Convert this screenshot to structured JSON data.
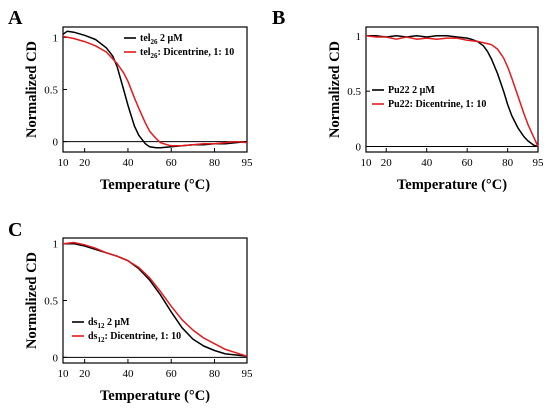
{
  "chart_data": [
    {
      "panel": "A",
      "type": "line",
      "xlabel": "Temperature (°C)",
      "ylabel": "Normalized CD",
      "xlim": [
        10,
        95
      ],
      "ylim": [
        -0.1,
        1.1
      ],
      "xticks": [
        10,
        20,
        40,
        60,
        80,
        95
      ],
      "yticks": [
        0,
        0.5,
        1
      ],
      "ytick_labels": [
        "0",
        "0.5",
        "1"
      ],
      "legend_position": "top-right",
      "series": [
        {
          "name": "tel₂₆ 2 μM",
          "legend_main": "tel",
          "legend_sub": "26",
          "legend_rest": " 2 μM",
          "color": "#000000",
          "x": [
            10,
            12,
            15,
            20,
            25,
            30,
            33,
            35,
            38,
            40,
            43,
            45,
            48,
            50,
            53,
            55,
            60,
            65,
            70,
            75,
            80,
            85,
            90,
            95
          ],
          "y": [
            1.03,
            1.06,
            1.05,
            1.02,
            0.98,
            0.9,
            0.82,
            0.72,
            0.5,
            0.35,
            0.15,
            0.06,
            -0.02,
            -0.05,
            -0.06,
            -0.06,
            -0.05,
            -0.04,
            -0.03,
            -0.03,
            -0.02,
            -0.02,
            -0.01,
            0.0
          ]
        },
        {
          "name": "tel₂₆: Dicentrine, 1: 10",
          "legend_main": "tel",
          "legend_sub": "26",
          "legend_rest": ": Dicentrine, 1: 10",
          "color": "#e31a1c",
          "x": [
            10,
            15,
            20,
            25,
            30,
            35,
            38,
            40,
            43,
            45,
            48,
            50,
            53,
            55,
            58,
            60,
            65,
            70,
            75,
            80,
            85,
            90,
            95
          ],
          "y": [
            1.01,
            0.99,
            0.96,
            0.92,
            0.86,
            0.75,
            0.66,
            0.58,
            0.42,
            0.32,
            0.18,
            0.1,
            0.03,
            -0.01,
            -0.03,
            -0.04,
            -0.04,
            -0.03,
            -0.02,
            -0.02,
            -0.01,
            0.0,
            -0.01
          ]
        }
      ]
    },
    {
      "panel": "B",
      "type": "line",
      "xlabel": "Temperature (°C)",
      "ylabel": "Normalized CD",
      "xlim": [
        10,
        95
      ],
      "ylim": [
        -0.05,
        1.08
      ],
      "xticks": [
        10,
        20,
        40,
        60,
        80,
        95
      ],
      "yticks": [
        0,
        0.5,
        1
      ],
      "ytick_labels": [
        "0",
        "0.5",
        "1"
      ],
      "legend_position": "center-left",
      "series": [
        {
          "name": "Pu22 2 μM",
          "legend_main": "Pu22 2 μM",
          "legend_sub": "",
          "legend_rest": "",
          "color": "#000000",
          "x": [
            10,
            15,
            20,
            25,
            30,
            35,
            40,
            45,
            50,
            55,
            60,
            62,
            65,
            68,
            70,
            72,
            75,
            78,
            80,
            82,
            85,
            88,
            90,
            93,
            95
          ],
          "y": [
            1.0,
            1.0,
            0.99,
            1.0,
            0.99,
            1.0,
            0.99,
            1.0,
            1.0,
            0.99,
            0.98,
            0.97,
            0.95,
            0.91,
            0.86,
            0.79,
            0.66,
            0.5,
            0.38,
            0.28,
            0.17,
            0.09,
            0.05,
            0.01,
            0.0
          ]
        },
        {
          "name": "Pu22: Dicentrine, 1: 10",
          "legend_main": "Pu22: Dicentrine, 1: 10",
          "legend_sub": "",
          "legend_rest": "",
          "color": "#e31a1c",
          "x": [
            10,
            15,
            20,
            25,
            30,
            35,
            40,
            45,
            50,
            55,
            60,
            65,
            70,
            72,
            75,
            78,
            80,
            82,
            85,
            88,
            90,
            92,
            95
          ],
          "y": [
            1.0,
            0.99,
            0.99,
            0.97,
            0.99,
            0.97,
            0.98,
            0.97,
            0.98,
            0.98,
            0.96,
            0.95,
            0.93,
            0.92,
            0.88,
            0.8,
            0.72,
            0.62,
            0.46,
            0.3,
            0.2,
            0.12,
            0.0
          ]
        }
      ]
    },
    {
      "panel": "C",
      "type": "line",
      "xlabel": "Temperature (°C)",
      "ylabel": "Normalized CD",
      "xlim": [
        10,
        95
      ],
      "ylim": [
        -0.05,
        1.05
      ],
      "xticks": [
        10,
        20,
        40,
        60,
        80,
        95
      ],
      "yticks": [
        0,
        0.5,
        1
      ],
      "ytick_labels": [
        "0",
        "0.5",
        "1"
      ],
      "legend_position": "bottom-left",
      "series": [
        {
          "name": "ds₁₂ 2 μM",
          "legend_main": "ds",
          "legend_sub": "12",
          "legend_rest": " 2 μM",
          "color": "#000000",
          "x": [
            10,
            15,
            20,
            25,
            30,
            35,
            40,
            45,
            50,
            55,
            60,
            65,
            70,
            75,
            80,
            85,
            90,
            95
          ],
          "y": [
            1.0,
            1.0,
            0.98,
            0.95,
            0.92,
            0.89,
            0.85,
            0.78,
            0.68,
            0.55,
            0.4,
            0.26,
            0.16,
            0.1,
            0.06,
            0.03,
            0.02,
            0.01
          ]
        },
        {
          "name": "ds₁₂: Dicentrine, 1: 10",
          "legend_main": "ds",
          "legend_sub": "12",
          "legend_rest": ": Dicentrine, 1: 10",
          "color": "#e31a1c",
          "x": [
            10,
            15,
            20,
            25,
            30,
            35,
            40,
            45,
            50,
            55,
            60,
            65,
            70,
            75,
            80,
            85,
            90,
            95
          ],
          "y": [
            1.0,
            1.01,
            0.99,
            0.96,
            0.92,
            0.89,
            0.85,
            0.79,
            0.7,
            0.58,
            0.45,
            0.33,
            0.24,
            0.17,
            0.12,
            0.07,
            0.04,
            0.01
          ]
        }
      ]
    }
  ]
}
